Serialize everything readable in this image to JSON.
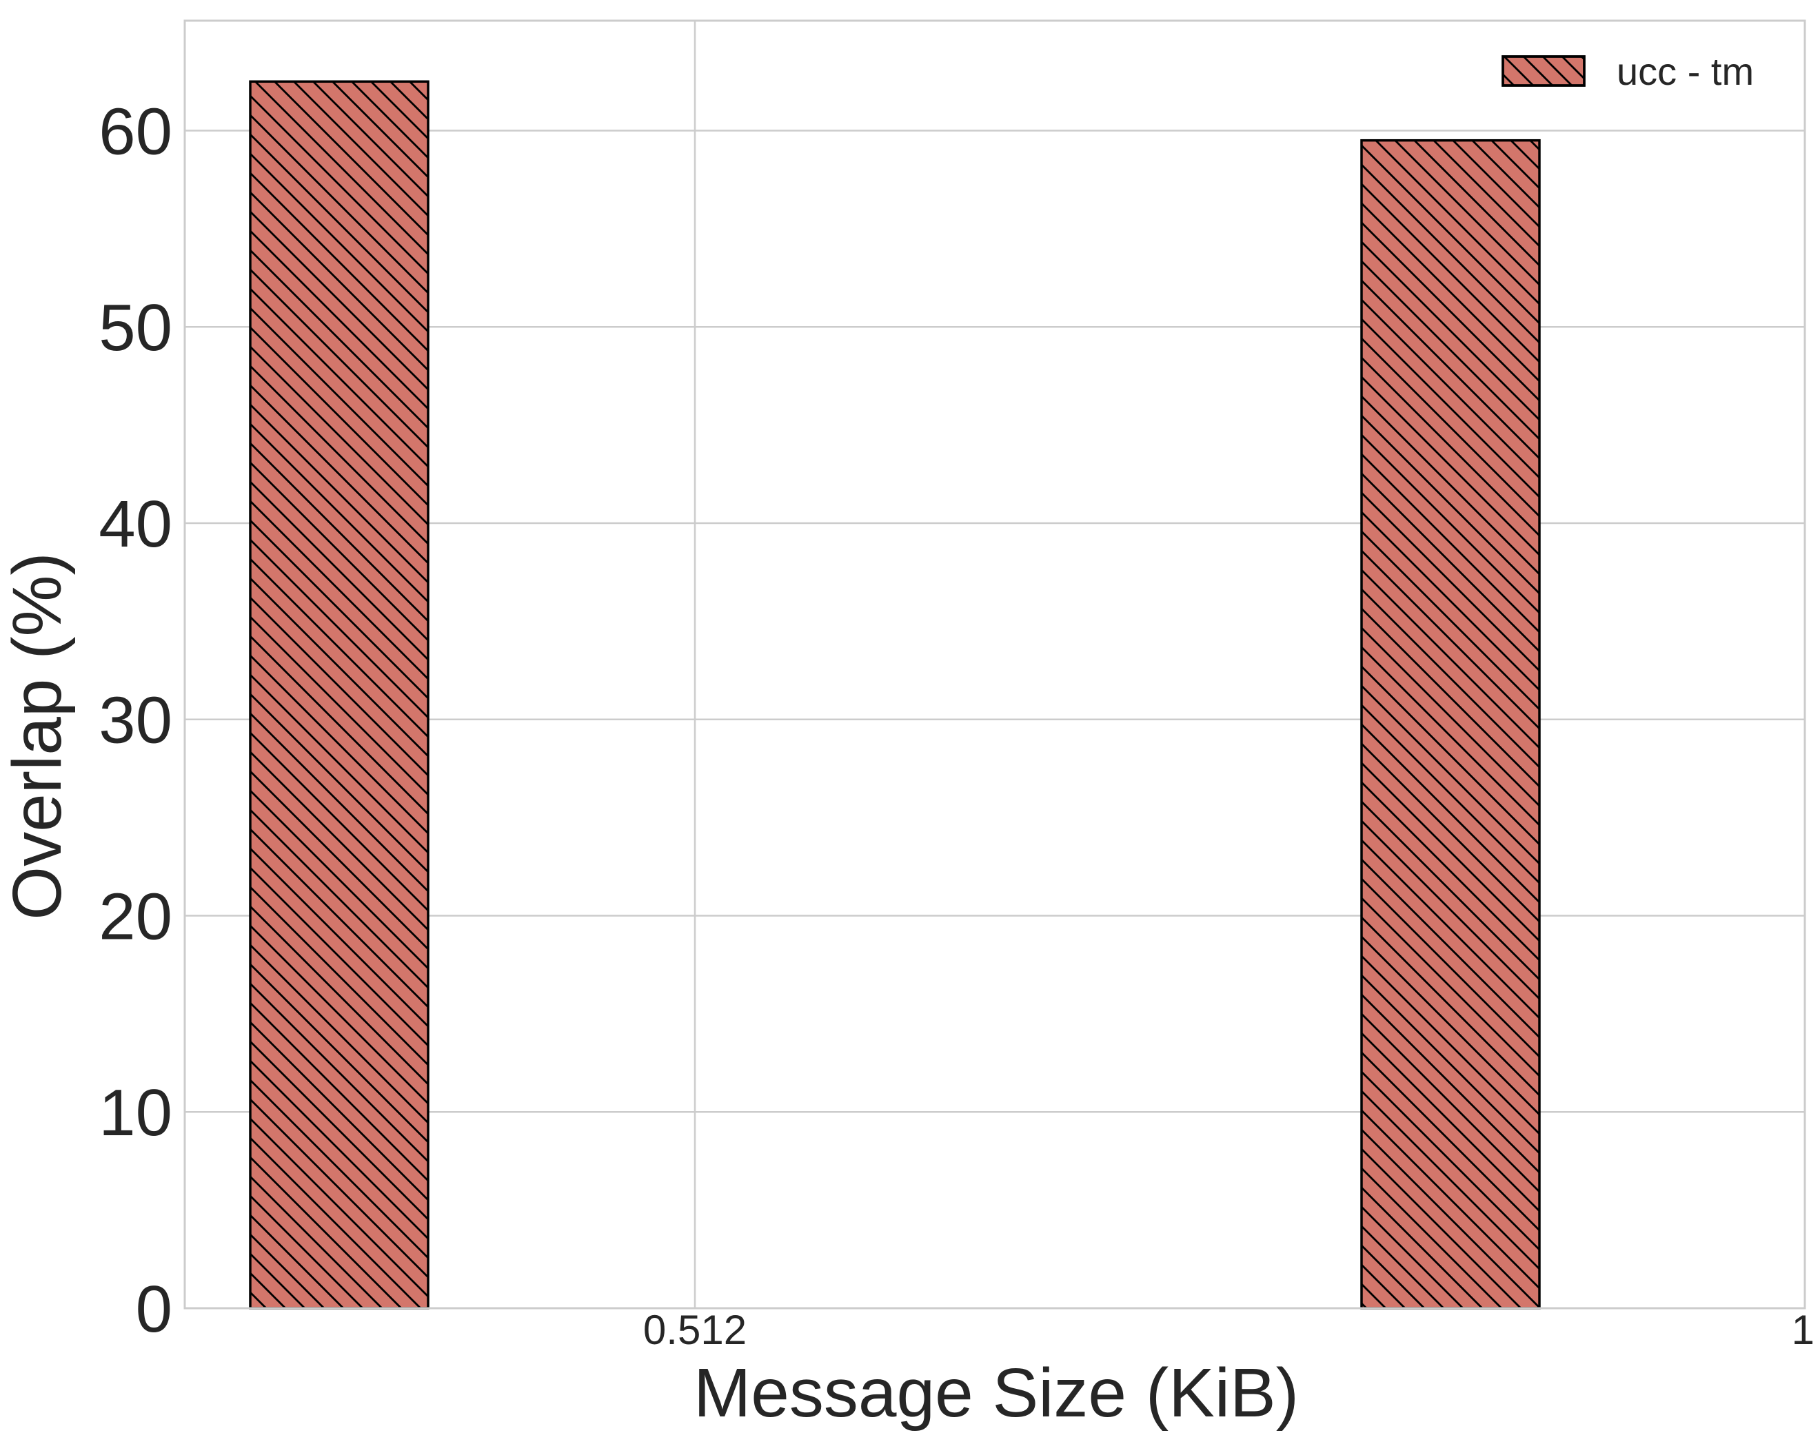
{
  "chart_data": {
    "type": "bar",
    "categories": [
      "0.512",
      "1"
    ],
    "xticks": [
      "0.512",
      "1"
    ],
    "series": [
      {
        "name": "ucc - tm",
        "values": [
          62.5,
          59.5
        ],
        "color": "#d3766b",
        "hatch": "diagonal-backslash"
      }
    ],
    "xlabel": "Message Size (KiB)",
    "ylabel": "Overlap (%)",
    "ylim": [
      0,
      65.6
    ],
    "yticks": [
      0,
      10,
      20,
      30,
      40,
      50,
      60
    ],
    "grid": true,
    "legend_position": "top-right"
  }
}
